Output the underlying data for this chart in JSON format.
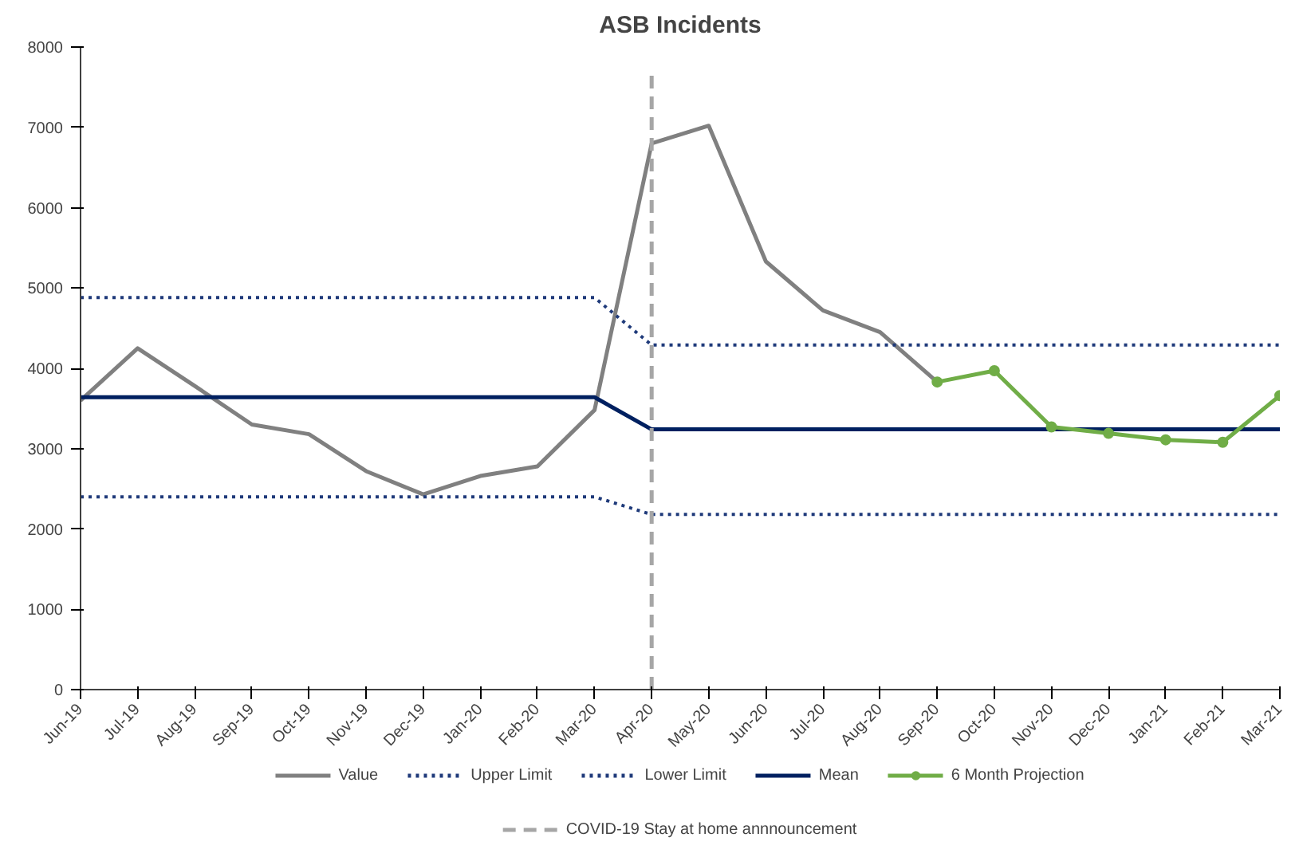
{
  "chart_data": {
    "type": "line",
    "title": "ASB Incidents",
    "categories": [
      "Jun-19",
      "Jul-19",
      "Aug-19",
      "Sep-19",
      "Oct-19",
      "Nov-19",
      "Dec-19",
      "Jan-20",
      "Feb-20",
      "Mar-20",
      "Apr-20",
      "May-20",
      "Jun-20",
      "Jul-20",
      "Aug-20",
      "Sep-20",
      "Oct-20",
      "Nov-20",
      "Dec-20",
      "Jan-21",
      "Feb-21",
      "Mar-21"
    ],
    "series": [
      {
        "name": "Value",
        "color": "#808080",
        "line_style": "solid",
        "marker": "none",
        "values": [
          3600,
          4250,
          3780,
          3300,
          3180,
          2720,
          2430,
          2660,
          2780,
          3480,
          6800,
          7020,
          5330,
          4720,
          4450,
          3830,
          null,
          null,
          null,
          null,
          null,
          null
        ]
      },
      {
        "name": "Upper Limit",
        "color": "#1f3a7a",
        "line_style": "dotted",
        "marker": "none",
        "values": [
          4880,
          4880,
          4880,
          4880,
          4880,
          4880,
          4880,
          4880,
          4880,
          4880,
          4290,
          4290,
          4290,
          4290,
          4290,
          4290,
          4290,
          4290,
          4290,
          4290,
          4290,
          4290
        ]
      },
      {
        "name": "Lower Limit",
        "color": "#1f3a7a",
        "line_style": "dotted",
        "marker": "none",
        "values": [
          2400,
          2400,
          2400,
          2400,
          2400,
          2400,
          2400,
          2400,
          2400,
          2400,
          2180,
          2180,
          2180,
          2180,
          2180,
          2180,
          2180,
          2180,
          2180,
          2180,
          2180,
          2180
        ]
      },
      {
        "name": "Mean",
        "color": "#002060",
        "line_style": "solid",
        "marker": "none",
        "values": [
          3640,
          3640,
          3640,
          3640,
          3640,
          3640,
          3640,
          3640,
          3640,
          3640,
          3240,
          3240,
          3240,
          3240,
          3240,
          3240,
          3240,
          3240,
          3240,
          3240,
          3240,
          3240
        ]
      },
      {
        "name": "6 Month Projection",
        "color": "#70ad47",
        "line_style": "solid",
        "marker": "circle",
        "values": [
          null,
          null,
          null,
          null,
          null,
          null,
          null,
          null,
          null,
          null,
          null,
          null,
          null,
          null,
          null,
          3830,
          3970,
          3270,
          3190,
          3110,
          3080,
          3660
        ]
      }
    ],
    "ylim": [
      0,
      8000
    ],
    "yticks": [
      0,
      1000,
      2000,
      3000,
      4000,
      5000,
      6000,
      7000,
      8000
    ],
    "ref_lines": [
      {
        "axis": "x",
        "value": "Apr-20",
        "label": "COVID-19 Stay at home annnouncement",
        "color": "#a6a6a6",
        "line_style": "dashed"
      }
    ],
    "grid": false,
    "legend": "bottom"
  }
}
